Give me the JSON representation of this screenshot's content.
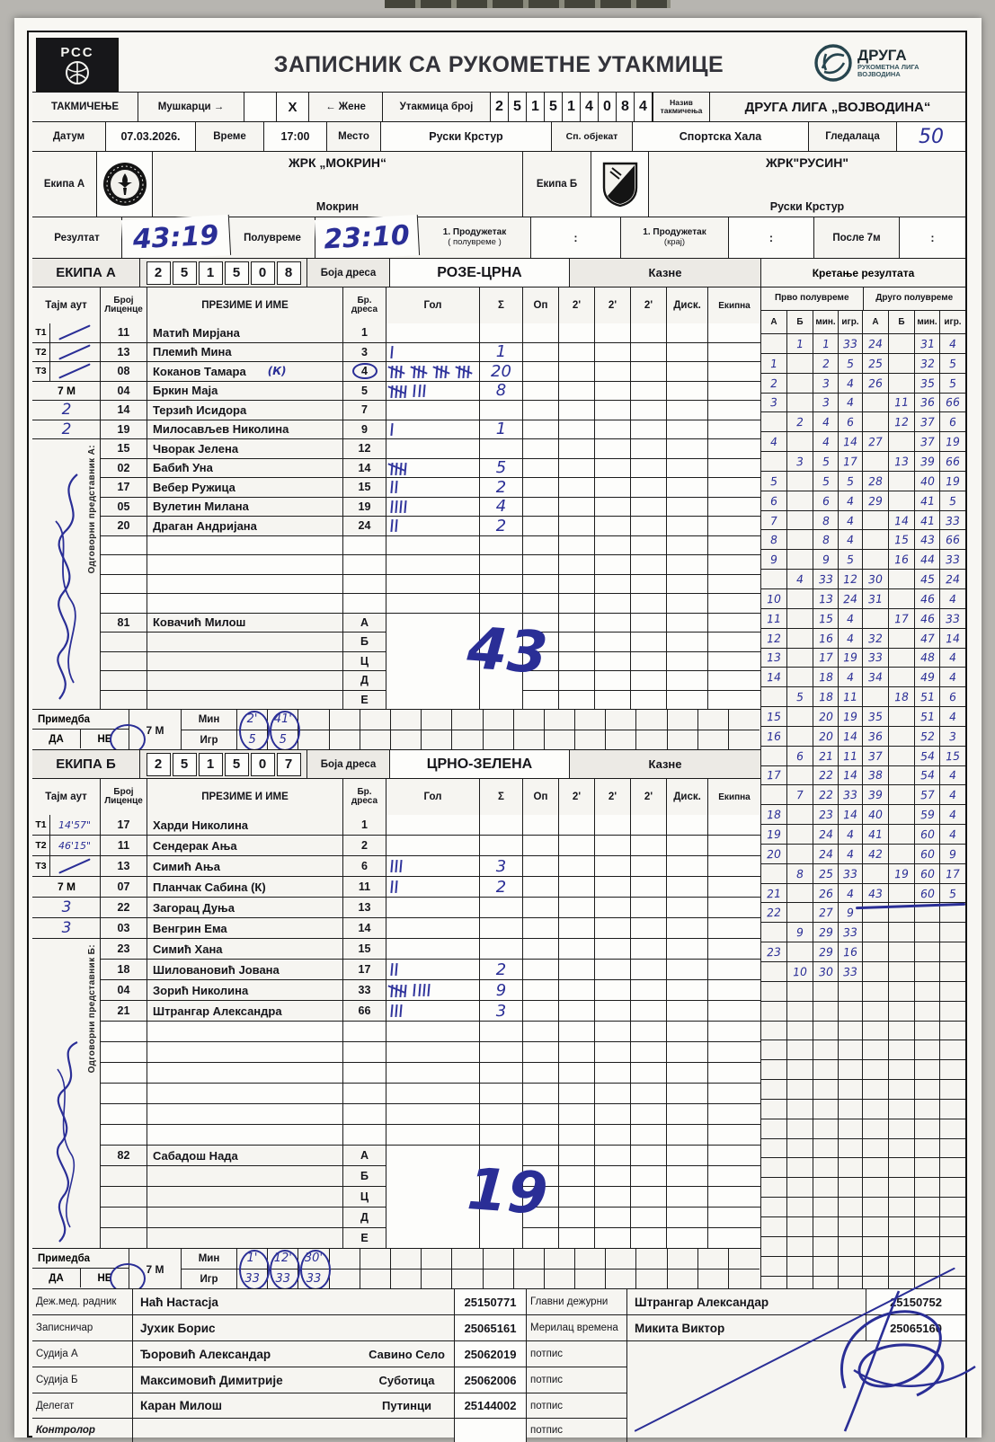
{
  "header": {
    "org_abbr": "РСС",
    "title": "ЗАПИСНИК СА РУКОМЕТНЕ УТАКМИЦЕ",
    "league_logo": {
      "line1": "ДРУГА",
      "line2": "РУКОМЕТНА ЛИГА",
      "line3": "ВОЈВОДИНА"
    }
  },
  "competition_row": {
    "label": "ТАКМИЧЕЊЕ",
    "men": "Мушкарци",
    "arrow_right": "→",
    "x_mark": "X",
    "arrow_left": "←",
    "women": "Жене",
    "match_no_label": "Утакмица број",
    "match_no_digits": [
      "2",
      "5",
      "1",
      "5",
      "1",
      "4",
      "0",
      "8",
      "4"
    ],
    "name_label1": "Назив",
    "name_label2": "такмичења",
    "competition_name": "ДРУГА ЛИГА „ВОЈВОДИНА“"
  },
  "info_row": {
    "date_label": "Датум",
    "date": "07.03.2026.",
    "time_label": "Време",
    "time": "17:00",
    "place_label": "Место",
    "place": "Руски Крстур",
    "venue_label": "Сп. објекат",
    "venue": "Спортска Хала",
    "spectators_label": "Гледалаца",
    "spectators": "50"
  },
  "teams_row": {
    "team_a_label": "Екипа А",
    "team_a_name": "ЖРК „МОКРИН“",
    "team_a_city": "Мокрин",
    "team_b_label": "Екипа Б",
    "team_b_name": "ЖРК\"РУСИН\"",
    "team_b_city": "Руски Крстур"
  },
  "result_row": {
    "result_label": "Резултат",
    "result": "43:19",
    "halftime_label": "Полувреме",
    "halftime": "23:10",
    "ot1_half_label": "1. Продужетак",
    "ot1_half_sub": "( полувреме )",
    "ot1_end_label": "1. Продужетак",
    "ot1_end_sub": "(крај)",
    "after7m_label": "После 7м",
    "colon": ":"
  },
  "table_headers": {
    "timeout": "Тајм аут",
    "license1": "Број",
    "license2": "Лиценце",
    "name": "ПРЕЗИМЕ И ИМЕ",
    "jersey1": "Бр.",
    "jersey2": "дреса",
    "goal": "Гол",
    "sum": "Σ",
    "op": "Оп",
    "two": "2'",
    "disq": "Диск.",
    "ekipna": "Екипна",
    "seven_m": "7 М",
    "first_half": "Прво полувреме",
    "second_half": "Друго полувреме",
    "prog_cols": [
      "А",
      "Б",
      "мин.",
      "игр."
    ]
  },
  "team_a": {
    "band_label": "ЕКИПА А",
    "band_digits": [
      "2",
      "5",
      "1",
      "5",
      "0",
      "8"
    ],
    "jersey_color_label": "Боја дреса",
    "jersey_color": "РОЗЕ-ЦРНА",
    "penalties_label": "Казне",
    "progress_label": "Кретање резултата",
    "rep_label": "Одговорни представник А:",
    "timeouts": [
      {
        "label": "Т1",
        "value": "∕"
      },
      {
        "label": "Т2",
        "value": "∕"
      },
      {
        "label": "Т3",
        "value": "∕"
      }
    ],
    "seven_m_values": [
      "2",
      "2"
    ],
    "players": [
      {
        "license": "11",
        "name": "Матић Мирјана",
        "captain": "",
        "jersey": "1",
        "jersey_circled": false,
        "goals": 0,
        "sum": ""
      },
      {
        "license": "13",
        "name": "Племић Мина",
        "captain": "",
        "jersey": "3",
        "jersey_circled": false,
        "goals": 1,
        "sum": "1"
      },
      {
        "license": "08",
        "name": "Коканов Тамара",
        "captain": "(К)",
        "jersey": "4",
        "jersey_circled": true,
        "goals": 20,
        "sum": "20"
      },
      {
        "license": "04",
        "name": "Бркин Маја",
        "captain": "",
        "jersey": "5",
        "jersey_circled": false,
        "goals": 8,
        "sum": "8"
      },
      {
        "license": "14",
        "name": "Терзић Исидора",
        "captain": "",
        "jersey": "7",
        "jersey_circled": false,
        "goals": 0,
        "sum": ""
      },
      {
        "license": "19",
        "name": "Милосављев Николина",
        "captain": "",
        "jersey": "9",
        "jersey_circled": false,
        "goals": 1,
        "sum": "1"
      },
      {
        "license": "15",
        "name": "Чворак Јелена",
        "captain": "",
        "jersey": "12",
        "jersey_circled": false,
        "goals": 0,
        "sum": ""
      },
      {
        "license": "02",
        "name": "Бабић Уна",
        "captain": "",
        "jersey": "14",
        "jersey_circled": false,
        "goals": 5,
        "sum": "5"
      },
      {
        "license": "17",
        "name": "Вебер Ружица",
        "captain": "",
        "jersey": "15",
        "jersey_circled": false,
        "goals": 2,
        "sum": "2"
      },
      {
        "license": "05",
        "name": "Вулетин Милана",
        "captain": "",
        "jersey": "19",
        "jersey_circled": false,
        "goals": 4,
        "sum": "4"
      },
      {
        "license": "20",
        "name": "Драган Андријана",
        "captain": "",
        "jersey": "24",
        "jersey_circled": false,
        "goals": 2,
        "sum": "2"
      }
    ],
    "empty_rows": 4,
    "officials": [
      {
        "license": "81",
        "name": "Ковачић Милош",
        "letter": "А"
      },
      {
        "license": "",
        "name": "",
        "letter": "Б"
      },
      {
        "license": "",
        "name": "",
        "letter": "Ц"
      },
      {
        "license": "",
        "name": "",
        "letter": "Д"
      },
      {
        "license": "",
        "name": "",
        "letter": "Е"
      }
    ],
    "total": "43",
    "remark": {
      "label": "Примедба",
      "yes": "ДА",
      "no": "НЕ",
      "seven_m": "7 М",
      "min_label": "Мин",
      "igr_label": "Игр",
      "pairs": [
        {
          "min": "2'",
          "igr": "5"
        },
        {
          "min": "41'",
          "igr": "5"
        }
      ]
    }
  },
  "team_b": {
    "band_label": "ЕКИПА Б",
    "band_digits": [
      "2",
      "5",
      "1",
      "5",
      "0",
      "7"
    ],
    "jersey_color_label": "Боја дреса",
    "jersey_color": "ЦРНО-ЗЕЛЕНА",
    "penalties_label": "Казне",
    "rep_label": "Одговорни представник Б:",
    "timeouts": [
      {
        "label": "Т1",
        "value": "14'57\""
      },
      {
        "label": "Т2",
        "value": "46'15\""
      },
      {
        "label": "Т3",
        "value": "∕"
      }
    ],
    "seven_m_values": [
      "3",
      "3"
    ],
    "players": [
      {
        "license": "17",
        "name": "Харди Николина",
        "captain": "",
        "jersey": "1",
        "jersey_circled": false,
        "goals": 0,
        "sum": ""
      },
      {
        "license": "11",
        "name": "Сендерак Ања",
        "captain": "",
        "jersey": "2",
        "jersey_circled": false,
        "goals": 0,
        "sum": ""
      },
      {
        "license": "13",
        "name": "Симић Ања",
        "captain": "",
        "jersey": "6",
        "jersey_circled": false,
        "goals": 3,
        "sum": "3"
      },
      {
        "license": "07",
        "name": "Планчак Сабина (К)",
        "captain": "",
        "jersey": "11",
        "jersey_circled": false,
        "goals": 2,
        "sum": "2"
      },
      {
        "license": "22",
        "name": "Загорац Дуња",
        "captain": "",
        "jersey": "13",
        "jersey_circled": false,
        "goals": 0,
        "sum": ""
      },
      {
        "license": "03",
        "name": "Венгрин Ема",
        "captain": "",
        "jersey": "14",
        "jersey_circled": false,
        "goals": 0,
        "sum": ""
      },
      {
        "license": "23",
        "name": "Симић Хана",
        "captain": "",
        "jersey": "15",
        "jersey_circled": false,
        "goals": 0,
        "sum": ""
      },
      {
        "license": "18",
        "name": "Шиловановић Јована",
        "captain": "",
        "jersey": "17",
        "jersey_circled": false,
        "goals": 2,
        "sum": "2"
      },
      {
        "license": "04",
        "name": "Зорић Николина",
        "captain": "",
        "jersey": "33",
        "jersey_circled": false,
        "goals": 9,
        "sum": "9"
      },
      {
        "license": "21",
        "name": "Штрангар Александра",
        "captain": "",
        "jersey": "66",
        "jersey_circled": false,
        "goals": 3,
        "sum": "3"
      }
    ],
    "empty_rows": 6,
    "officials": [
      {
        "license": "82",
        "name": "Сабадош Нада",
        "letter": "А"
      },
      {
        "license": "",
        "name": "",
        "letter": "Б"
      },
      {
        "license": "",
        "name": "",
        "letter": "Ц"
      },
      {
        "license": "",
        "name": "",
        "letter": "Д"
      },
      {
        "license": "",
        "name": "",
        "letter": "Е"
      }
    ],
    "total": "19",
    "remark": {
      "label": "Примедба",
      "yes": "ДА",
      "no": "НЕ",
      "seven_m": "7 М",
      "min_label": "Мин",
      "igr_label": "Игр",
      "pairs": [
        {
          "min": "1'",
          "igr": "33"
        },
        {
          "min": "12'",
          "igr": "33"
        },
        {
          "min": "30'",
          "igr": "33"
        }
      ]
    }
  },
  "progression": {
    "rows": [
      [
        "",
        "1",
        "1",
        "33",
        "24",
        "",
        "31",
        "4"
      ],
      [
        "1",
        "",
        "2",
        "5",
        "25",
        "",
        "32",
        "5"
      ],
      [
        "2",
        "",
        "3",
        "4",
        "26",
        "",
        "35",
        "5"
      ],
      [
        "3",
        "",
        "3",
        "4",
        "",
        "11",
        "36",
        "66"
      ],
      [
        "",
        "2",
        "4",
        "6",
        "",
        "12",
        "37",
        "6"
      ],
      [
        "4",
        "",
        "4",
        "14",
        "27",
        "",
        "37",
        "19"
      ],
      [
        "",
        "3",
        "5",
        "17",
        "",
        "13",
        "39",
        "66"
      ],
      [
        "5",
        "",
        "5",
        "5",
        "28",
        "",
        "40",
        "19"
      ],
      [
        "6",
        "",
        "6",
        "4",
        "29",
        "",
        "41",
        "5"
      ],
      [
        "7",
        "",
        "8",
        "4",
        "",
        "14",
        "41",
        "33"
      ],
      [
        "8",
        "",
        "8",
        "4",
        "",
        "15",
        "43",
        "66"
      ],
      [
        "9",
        "",
        "9",
        "5",
        "",
        "16",
        "44",
        "33"
      ],
      [
        "",
        "4",
        "33",
        "12",
        "30",
        "",
        "45",
        "24"
      ],
      [
        "10",
        "",
        "13",
        "24",
        "31",
        "",
        "46",
        "4"
      ],
      [
        "11",
        "",
        "15",
        "4",
        "",
        "17",
        "46",
        "33"
      ],
      [
        "12",
        "",
        "16",
        "4",
        "32",
        "",
        "47",
        "14"
      ],
      [
        "13",
        "",
        "17",
        "19",
        "33",
        "",
        "48",
        "4"
      ],
      [
        "14",
        "",
        "18",
        "4",
        "34",
        "",
        "49",
        "4"
      ],
      [
        "",
        "5",
        "18",
        "11",
        "",
        "18",
        "51",
        "6"
      ],
      [
        "15",
        "",
        "20",
        "19",
        "35",
        "",
        "51",
        "4"
      ],
      [
        "16",
        "",
        "20",
        "14",
        "36",
        "",
        "52",
        "3"
      ],
      [
        "",
        "6",
        "21",
        "11",
        "37",
        "",
        "54",
        "15"
      ],
      [
        "17",
        "",
        "22",
        "14",
        "38",
        "",
        "54",
        "4"
      ],
      [
        "",
        "7",
        "22",
        "33",
        "39",
        "",
        "57",
        "4"
      ],
      [
        "18",
        "",
        "23",
        "14",
        "40",
        "",
        "59",
        "4"
      ],
      [
        "19",
        "",
        "24",
        "4",
        "41",
        "",
        "60",
        "4"
      ],
      [
        "20",
        "",
        "24",
        "4",
        "42",
        "",
        "60",
        "9"
      ],
      [
        "",
        "8",
        "25",
        "33",
        "",
        "19",
        "60",
        "17"
      ],
      [
        "21",
        "",
        "26",
        "4",
        "43",
        "",
        "60",
        "5"
      ],
      [
        "22",
        "",
        "27",
        "9",
        "",
        "",
        "",
        ""
      ],
      [
        "",
        "9",
        "29",
        "33",
        "",
        "",
        "",
        ""
      ],
      [
        "23",
        "",
        "29",
        "16",
        "",
        "",
        "",
        ""
      ],
      [
        "",
        "10",
        "30",
        "33",
        "",
        "",
        "",
        ""
      ]
    ],
    "final_row": 28,
    "empty_rows": 16
  },
  "bottom": {
    "rows": [
      {
        "label": "Деж.мед. радник",
        "name": "Наћ Настасја",
        "place": "",
        "number": "25150771",
        "role": "Главни дежурни",
        "rname": "Штрангар Александар",
        "rnumber": "25150752"
      },
      {
        "label": "Записничар",
        "name": "Јухик Борис",
        "place": "",
        "number": "25065161",
        "role": "Мерилац времена",
        "rname": "Микита Виктор",
        "rnumber": "25065160"
      },
      {
        "label": "Судија А",
        "name": "Ђоровић Александар",
        "place": "Савино Село",
        "number": "25062019",
        "role": "потпис",
        "rname": "",
        "rnumber": ""
      },
      {
        "label": "Судија Б",
        "name": "Максимовић Димитрије",
        "place": "Суботица",
        "number": "25062006",
        "role": "потпис",
        "rname": "",
        "rnumber": ""
      },
      {
        "label": "Делегат",
        "name": "Каран Милош",
        "place": "Путинци",
        "number": "25144002",
        "role": "потпис",
        "rname": "",
        "rnumber": ""
      },
      {
        "label": "Контролор",
        "name": "",
        "place": "",
        "number": "",
        "role": "потпис",
        "rname": "",
        "rnumber": ""
      }
    ]
  }
}
